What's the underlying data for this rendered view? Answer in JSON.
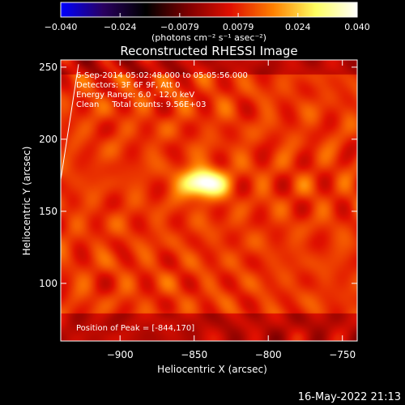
{
  "chart_data": {
    "type": "heatmap",
    "title": "Reconstructed RHESSI Image",
    "xlabel": "Heliocentric X (arcsec)",
    "ylabel": "Heliocentric Y (arcsec)",
    "xlim": [
      -940,
      -740
    ],
    "ylim": [
      60,
      255
    ],
    "xticks": [
      -900,
      -850,
      -800,
      -750
    ],
    "yticks": [
      100,
      150,
      200,
      250
    ],
    "xtick_labels": [
      "−900",
      "−850",
      "−800",
      "−750"
    ],
    "ytick_labels": [
      "100",
      "150",
      "200",
      "250"
    ],
    "colorbar": {
      "min": -0.04,
      "max": 0.04,
      "ticks": [
        -0.04,
        -0.024,
        -0.0079,
        0.0079,
        0.024,
        0.04
      ],
      "tick_labels": [
        "−0.040",
        "−0.024",
        "−0.0079",
        "0.0079",
        "0.024",
        "0.040"
      ],
      "unit_label": "(photons cm⁻² s⁻¹ asec⁻²)",
      "colormap": [
        "#0000ff",
        "#2a0060",
        "#000000",
        "#800000",
        "#e01000",
        "#ff8000",
        "#ffff60",
        "#ffffff"
      ]
    },
    "annotations": [
      "6-Sep-2014 05:02:48.000 to 05:05:56.000",
      "Detectors: 3F 6F 9F, Att 0",
      "Energy Range: 6.0 - 12.0 keV",
      "Clean     Total counts: 9.56E+03"
    ],
    "peak_label": "Position of Peak = [-844,170]",
    "peak": {
      "x": -844,
      "y": 170,
      "value": 0.04
    },
    "grid": false,
    "limb_line": {
      "x1": -940,
      "y1": 172,
      "x2": -928,
      "y2": 252
    }
  },
  "footer": {
    "timestamp": "16-May-2022 21:13"
  }
}
